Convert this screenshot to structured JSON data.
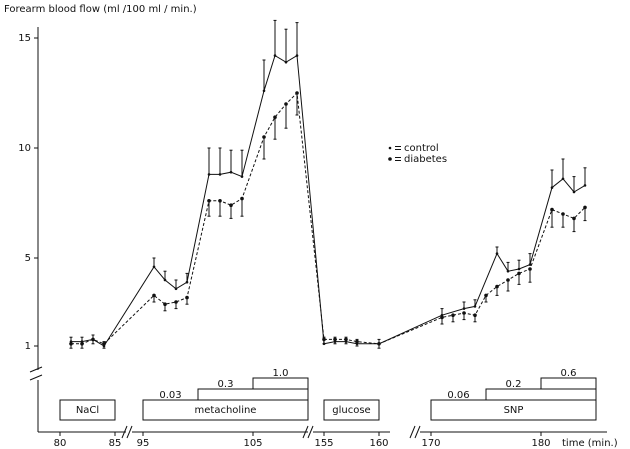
{
  "chart_data": {
    "type": "line",
    "y_label": "Forearm blood flow (ml /100 ml / min.)",
    "x_label": "time (min.)",
    "ylim": [
      1,
      15.5
    ],
    "yticks": [
      1,
      5,
      10,
      15
    ],
    "xsegments": [
      [
        78,
        86
      ],
      [
        94,
        110
      ],
      [
        154,
        161
      ],
      [
        169,
        186
      ]
    ],
    "xticks": [
      80,
      85,
      95,
      105,
      155,
      160,
      170,
      180
    ],
    "series": [
      {
        "name": "control",
        "color": "#111111",
        "dash": false,
        "x": [
          81,
          82,
          83,
          84,
          96,
          97,
          98,
          99,
          101,
          102,
          103,
          104,
          106,
          107,
          108,
          109,
          155,
          156,
          157,
          158,
          160,
          171,
          173,
          174,
          176,
          177,
          178,
          179,
          181,
          182,
          183,
          184
        ],
        "values": [
          1.2,
          1.2,
          1.3,
          1.0,
          4.6,
          4.0,
          3.6,
          3.9,
          8.8,
          8.8,
          8.9,
          8.7,
          12.6,
          14.2,
          13.9,
          14.2,
          1.1,
          1.2,
          1.2,
          1.1,
          1.1,
          2.4,
          2.7,
          2.8,
          5.2,
          4.4,
          4.5,
          4.7,
          8.2,
          8.6,
          8.0,
          8.3
        ],
        "errors": [
          0.2,
          0.2,
          0.2,
          0.2,
          0.4,
          0.4,
          0.4,
          0.4,
          1.2,
          1.2,
          1.0,
          1.2,
          1.4,
          1.6,
          1.5,
          1.5,
          0.3,
          0.2,
          0.2,
          0.2,
          0.2,
          0.3,
          0.3,
          0.3,
          0.3,
          0.4,
          0.4,
          0.5,
          0.8,
          0.9,
          0.7,
          0.8
        ]
      },
      {
        "name": "diabetes",
        "color": "#111111",
        "dash": true,
        "x": [
          81,
          82,
          83,
          84,
          96,
          97,
          98,
          99,
          101,
          102,
          103,
          104,
          106,
          107,
          108,
          109,
          155,
          156,
          157,
          158,
          160,
          171,
          172,
          173,
          174,
          175,
          176,
          177,
          178,
          179,
          181,
          182,
          183,
          184
        ],
        "values": [
          1.1,
          1.1,
          1.3,
          1.1,
          3.3,
          2.9,
          3.0,
          3.2,
          7.6,
          7.6,
          7.4,
          7.7,
          10.5,
          11.4,
          12.0,
          12.5,
          1.3,
          1.3,
          1.3,
          1.2,
          1.1,
          2.3,
          2.4,
          2.5,
          2.4,
          3.3,
          3.7,
          4.0,
          4.3,
          4.5,
          7.2,
          7.0,
          6.8,
          7.3
        ],
        "errors": [
          0.2,
          0.2,
          0.2,
          0.2,
          0.3,
          0.3,
          0.3,
          0.3,
          0.7,
          0.7,
          0.6,
          0.8,
          1.0,
          1.0,
          1.1,
          1.0,
          0.2,
          0.2,
          0.2,
          0.2,
          0.2,
          0.3,
          0.3,
          0.3,
          0.3,
          0.3,
          0.4,
          0.5,
          0.5,
          0.6,
          0.8,
          0.6,
          0.6,
          0.6
        ]
      }
    ],
    "treatments": [
      {
        "label": "NaCl",
        "start": 80,
        "end": 85
      },
      {
        "label": "metacholine",
        "start": 95,
        "end": 110,
        "doses": [
          {
            "label": "0.03",
            "start": 95
          },
          {
            "label": "0.3",
            "start": 100
          },
          {
            "label": "1.0",
            "start": 105
          }
        ]
      },
      {
        "label": "glucose",
        "start": 155,
        "end": 160
      },
      {
        "label": "SNP",
        "start": 170,
        "end": 185,
        "doses": [
          {
            "label": "0.06",
            "start": 170
          },
          {
            "label": "0.2",
            "start": 175
          },
          {
            "label": "0.6",
            "start": 180
          }
        ]
      }
    ]
  }
}
